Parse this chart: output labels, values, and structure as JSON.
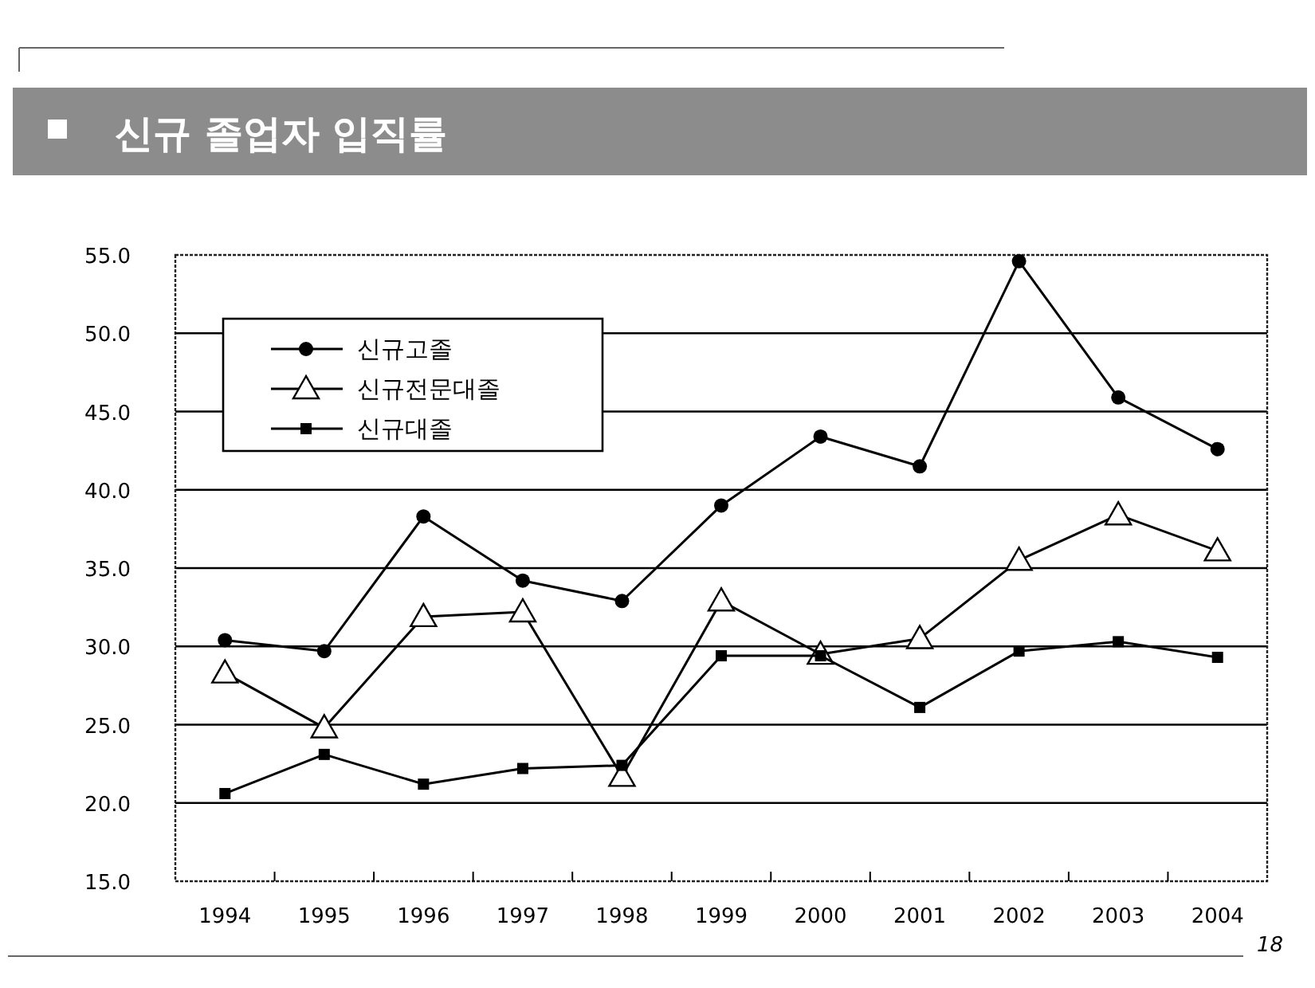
{
  "chart_data": {
    "type": "line",
    "title": "신규 졸업자 입직률",
    "categories": [
      "1994",
      "1995",
      "1996",
      "1997",
      "1998",
      "1999",
      "2000",
      "2001",
      "2002",
      "2003",
      "2004"
    ],
    "series": [
      {
        "name": "신규고졸",
        "color": "#000000",
        "marker": "circle",
        "values": [
          30.4,
          29.7,
          38.3,
          34.2,
          32.9,
          39.0,
          43.4,
          41.5,
          54.6,
          45.9,
          42.6
        ]
      },
      {
        "name": "신규전문대졸",
        "color": "#000000",
        "marker": "triangle",
        "values": [
          28.3,
          24.8,
          31.9,
          32.2,
          21.7,
          32.9,
          29.5,
          30.5,
          35.5,
          38.4,
          36.1
        ]
      },
      {
        "name": "신규대졸",
        "color": "#000000",
        "marker": "square",
        "values": [
          20.6,
          23.1,
          21.2,
          22.2,
          22.4,
          29.4,
          29.4,
          26.1,
          29.7,
          30.3,
          29.3
        ]
      }
    ],
    "ylim": [
      15,
      55
    ],
    "yticks": [
      {
        "value": 15,
        "label": "15.0"
      },
      {
        "value": 20,
        "label": "20.0"
      },
      {
        "value": 25,
        "label": "25.0"
      },
      {
        "value": 30,
        "label": "30.0"
      },
      {
        "value": 35,
        "label": "35.0"
      },
      {
        "value": 40,
        "label": "40.0"
      },
      {
        "value": 45,
        "label": "45.0"
      },
      {
        "value": 50,
        "label": "50.0"
      },
      {
        "value": 55,
        "label": "55.0"
      }
    ],
    "grid": "y",
    "legend": "top left",
    "line_style": "solid",
    "annotations": [
      "18"
    ]
  }
}
